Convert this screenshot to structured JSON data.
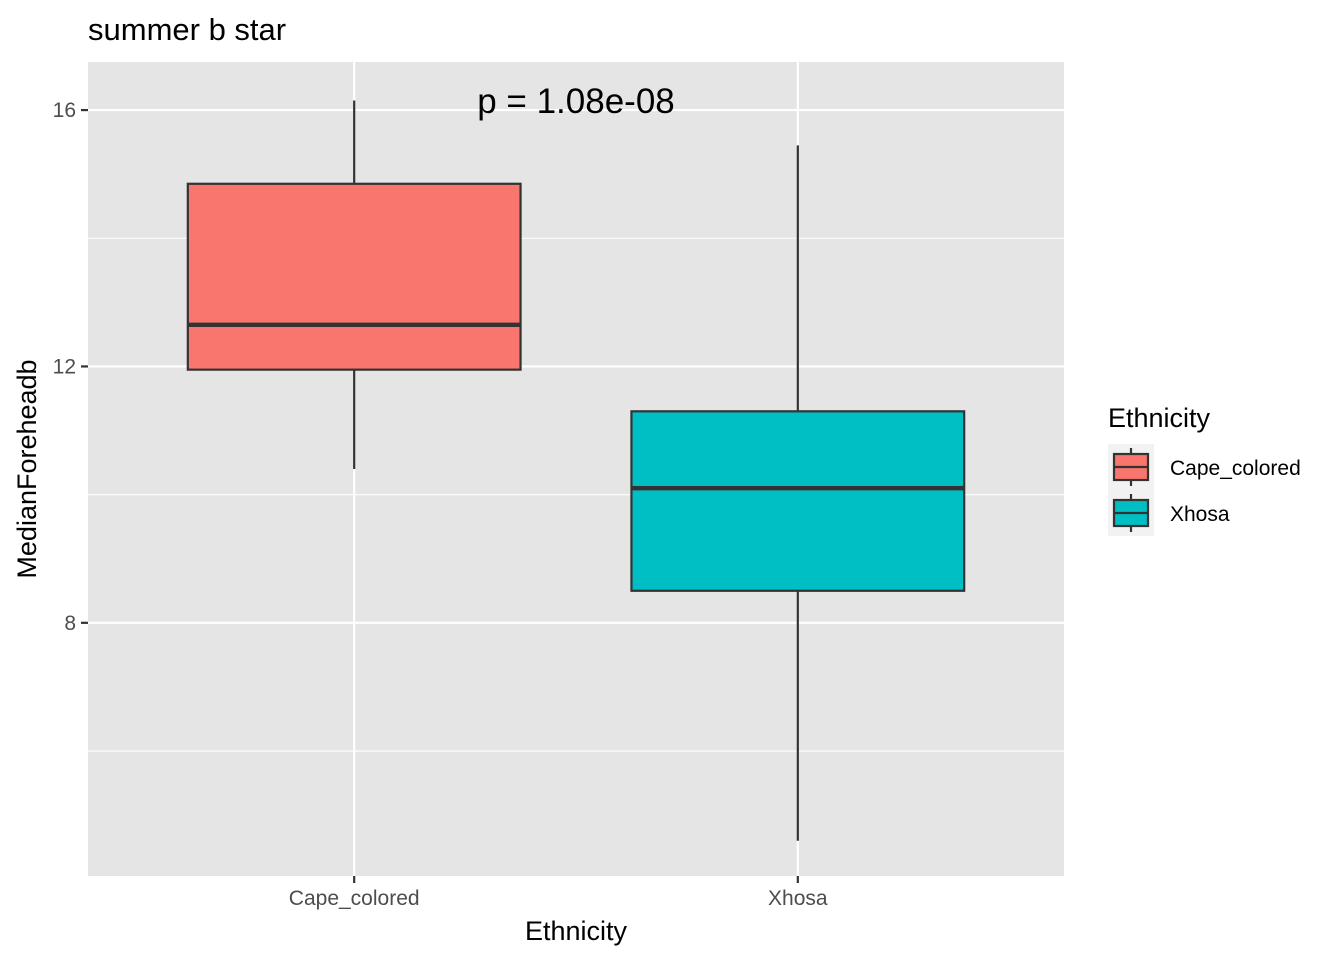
{
  "chart_data": {
    "type": "boxplot",
    "title": "summer b star",
    "xlabel": "Ethnicity",
    "ylabel": "MedianForeheadb",
    "annotation": "p = 1.08e-08",
    "categories": [
      "Cape_colored",
      "Xhosa"
    ],
    "boxes": [
      {
        "category": "Cape_colored",
        "whisker_low": 10.4,
        "q1": 11.95,
        "median": 12.65,
        "q3": 14.85,
        "whisker_high": 16.15,
        "color": "#F8766D"
      },
      {
        "category": "Xhosa",
        "whisker_low": 4.6,
        "q1": 8.5,
        "median": 10.1,
        "q3": 11.3,
        "whisker_high": 15.45,
        "color": "#00BFC4"
      }
    ],
    "ylim": [
      4.05,
      16.75
    ],
    "y_major_ticks": [
      8,
      12,
      16
    ],
    "y_minor_ticks": [
      6,
      10,
      14
    ],
    "y_tick_labels": [
      "8",
      "12",
      "16"
    ],
    "grid": true,
    "legend": {
      "title": "Ethnicity",
      "position": "right",
      "entries": [
        "Cape_colored",
        "Xhosa"
      ]
    },
    "colors": {
      "panel_background": "#E5E5E5",
      "grid": "#FFFFFF",
      "box_outline": "#333333",
      "Cape_colored": "#F8766D",
      "Xhosa": "#00BFC4"
    }
  }
}
